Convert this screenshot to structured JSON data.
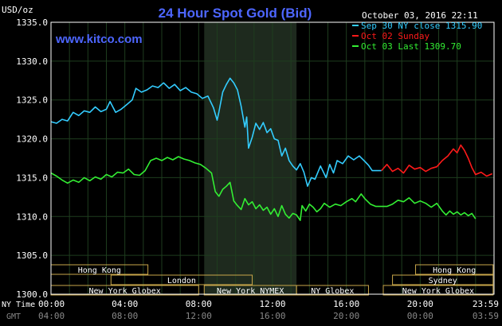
{
  "header": {
    "unit": "USD/oz",
    "title": "24 Hour Spot Gold (Bid)",
    "timestamp": "October 03, 2016 22:11",
    "website": "www.kitco.com"
  },
  "legend": [
    {
      "label": "Sep 30 NY close 1315.90",
      "color": "#33ccff"
    },
    {
      "label": "Oct 02 Sunday",
      "color": "#ff1a1a"
    },
    {
      "label": "Oct 03 Last 1309.70",
      "color": "#33ee33"
    }
  ],
  "axis": {
    "row_label_top": "NY Time",
    "row_label_bottom": "GMT",
    "x_ticks_ny": [
      "00:00",
      "04:00",
      "08:00",
      "12:00",
      "16:00",
      "20:00",
      "23:59"
    ],
    "x_ticks_gmt": [
      "04:00",
      "08:00",
      "12:00",
      "16:00",
      "20:00",
      "00:00",
      "03:59"
    ]
  },
  "sessions": [
    {
      "label": "Hong Kong",
      "start": 0.0,
      "end": 5.25,
      "row": 0
    },
    {
      "label": "Hong Kong",
      "start": 19.75,
      "end": 23.95,
      "row": 0
    },
    {
      "label": "London",
      "start": 3.25,
      "end": 10.9,
      "row": 1
    },
    {
      "label": "Sydney",
      "start": 18.5,
      "end": 23.95,
      "row": 1
    },
    {
      "label": "New York Globex",
      "start": 0.0,
      "end": 8.0,
      "row": 2
    },
    {
      "label": "New York NYMEX",
      "start": 8.3,
      "end": 13.3,
      "row": 2
    },
    {
      "label": "NY Globex",
      "start": 13.3,
      "end": 17.2,
      "row": 2
    },
    {
      "label": "New York Globex",
      "start": 18.0,
      "end": 23.95,
      "row": 2
    }
  ],
  "colors": {
    "background": "#000000",
    "grid": "#1e3d1e",
    "frame": "#ffffff",
    "title": "#4d66ff",
    "nymex_shade": "#1e2a1e",
    "session_box": "#c8a64a"
  },
  "chart_data": {
    "type": "line",
    "ylim": [
      1300,
      1335
    ],
    "y_ticks": [
      1300.0,
      1305.0,
      1310.0,
      1315.0,
      1320.0,
      1325.0,
      1330.0,
      1335.0
    ],
    "xlim": [
      0,
      24
    ],
    "shaded_range": [
      8.3,
      13.3
    ],
    "series": [
      {
        "name": "Sep 30 NY close 1315.90",
        "color": "#33ccff",
        "points": [
          [
            0,
            1322.2
          ],
          [
            0.3,
            1322.0
          ],
          [
            0.6,
            1322.5
          ],
          [
            0.9,
            1322.3
          ],
          [
            1.2,
            1323.4
          ],
          [
            1.5,
            1323.0
          ],
          [
            1.8,
            1323.6
          ],
          [
            2.1,
            1323.4
          ],
          [
            2.4,
            1324.1
          ],
          [
            2.7,
            1323.5
          ],
          [
            3.0,
            1323.8
          ],
          [
            3.2,
            1324.8
          ],
          [
            3.5,
            1323.4
          ],
          [
            3.8,
            1323.8
          ],
          [
            4.1,
            1324.4
          ],
          [
            4.4,
            1325.0
          ],
          [
            4.6,
            1326.5
          ],
          [
            4.9,
            1326.0
          ],
          [
            5.2,
            1326.3
          ],
          [
            5.5,
            1326.8
          ],
          [
            5.8,
            1326.6
          ],
          [
            6.1,
            1327.2
          ],
          [
            6.4,
            1326.5
          ],
          [
            6.7,
            1327.0
          ],
          [
            7.0,
            1326.2
          ],
          [
            7.3,
            1326.6
          ],
          [
            7.6,
            1326.0
          ],
          [
            7.9,
            1325.8
          ],
          [
            8.2,
            1325.2
          ],
          [
            8.5,
            1325.5
          ],
          [
            8.8,
            1324.0
          ],
          [
            9.0,
            1322.4
          ],
          [
            9.1,
            1323.5
          ],
          [
            9.3,
            1326.0
          ],
          [
            9.5,
            1327.0
          ],
          [
            9.7,
            1327.8
          ],
          [
            9.9,
            1327.2
          ],
          [
            10.1,
            1326.3
          ],
          [
            10.3,
            1324.2
          ],
          [
            10.5,
            1321.5
          ],
          [
            10.6,
            1322.8
          ],
          [
            10.7,
            1318.8
          ],
          [
            10.9,
            1320.2
          ],
          [
            11.1,
            1322.0
          ],
          [
            11.3,
            1321.2
          ],
          [
            11.5,
            1322.1
          ],
          [
            11.7,
            1320.8
          ],
          [
            11.9,
            1321.3
          ],
          [
            12.1,
            1320.0
          ],
          [
            12.3,
            1319.8
          ],
          [
            12.5,
            1317.8
          ],
          [
            12.7,
            1318.8
          ],
          [
            12.9,
            1317.2
          ],
          [
            13.1,
            1316.5
          ],
          [
            13.3,
            1316.0
          ],
          [
            13.5,
            1316.8
          ],
          [
            13.7,
            1315.7
          ],
          [
            13.9,
            1313.9
          ],
          [
            14.1,
            1315.0
          ],
          [
            14.3,
            1314.8
          ],
          [
            14.6,
            1316.5
          ],
          [
            14.9,
            1315.0
          ],
          [
            15.1,
            1316.7
          ],
          [
            15.3,
            1315.6
          ],
          [
            15.5,
            1317.2
          ],
          [
            15.8,
            1316.8
          ],
          [
            16.1,
            1317.8
          ],
          [
            16.4,
            1317.3
          ],
          [
            16.7,
            1317.8
          ],
          [
            17.0,
            1317.1
          ],
          [
            17.2,
            1316.6
          ],
          [
            17.4,
            1315.9
          ],
          [
            17.9,
            1315.9
          ]
        ]
      },
      {
        "name": "Oct 02 Sunday",
        "color": "#ff1a1a",
        "points": [
          [
            17.9,
            1315.9
          ],
          [
            18.2,
            1316.7
          ],
          [
            18.5,
            1315.8
          ],
          [
            18.8,
            1316.2
          ],
          [
            19.1,
            1315.6
          ],
          [
            19.4,
            1316.6
          ],
          [
            19.7,
            1316.1
          ],
          [
            20.0,
            1316.3
          ],
          [
            20.3,
            1315.8
          ],
          [
            20.6,
            1316.2
          ],
          [
            20.9,
            1316.4
          ],
          [
            21.2,
            1317.2
          ],
          [
            21.5,
            1317.8
          ],
          [
            21.8,
            1318.7
          ],
          [
            22.0,
            1318.2
          ],
          [
            22.2,
            1319.2
          ],
          [
            22.4,
            1318.5
          ],
          [
            22.6,
            1317.5
          ],
          [
            22.8,
            1316.3
          ],
          [
            23.0,
            1315.4
          ],
          [
            23.3,
            1315.7
          ],
          [
            23.6,
            1315.2
          ],
          [
            23.9,
            1315.5
          ]
        ]
      },
      {
        "name": "Oct 03 Last 1309.70",
        "color": "#33ee33",
        "points": [
          [
            0,
            1315.6
          ],
          [
            0.3,
            1315.2
          ],
          [
            0.6,
            1314.7
          ],
          [
            0.9,
            1314.3
          ],
          [
            1.2,
            1314.7
          ],
          [
            1.5,
            1314.4
          ],
          [
            1.8,
            1315.0
          ],
          [
            2.1,
            1314.6
          ],
          [
            2.4,
            1315.1
          ],
          [
            2.7,
            1314.8
          ],
          [
            3.0,
            1315.4
          ],
          [
            3.3,
            1315.1
          ],
          [
            3.6,
            1315.7
          ],
          [
            3.9,
            1315.6
          ],
          [
            4.2,
            1316.1
          ],
          [
            4.5,
            1315.4
          ],
          [
            4.8,
            1315.3
          ],
          [
            5.1,
            1315.9
          ],
          [
            5.4,
            1317.2
          ],
          [
            5.7,
            1317.5
          ],
          [
            6.0,
            1317.2
          ],
          [
            6.3,
            1317.6
          ],
          [
            6.6,
            1317.3
          ],
          [
            6.9,
            1317.7
          ],
          [
            7.2,
            1317.4
          ],
          [
            7.5,
            1317.2
          ],
          [
            7.8,
            1316.9
          ],
          [
            8.1,
            1316.7
          ],
          [
            8.4,
            1316.2
          ],
          [
            8.7,
            1315.6
          ],
          [
            8.9,
            1313.2
          ],
          [
            9.1,
            1312.6
          ],
          [
            9.3,
            1313.5
          ],
          [
            9.5,
            1313.9
          ],
          [
            9.7,
            1314.4
          ],
          [
            9.9,
            1312.0
          ],
          [
            10.1,
            1311.4
          ],
          [
            10.3,
            1310.9
          ],
          [
            10.5,
            1312.3
          ],
          [
            10.7,
            1311.5
          ],
          [
            10.9,
            1311.9
          ],
          [
            11.1,
            1311.0
          ],
          [
            11.3,
            1311.5
          ],
          [
            11.5,
            1310.8
          ],
          [
            11.7,
            1311.2
          ],
          [
            11.9,
            1310.3
          ],
          [
            12.1,
            1311.0
          ],
          [
            12.3,
            1310.0
          ],
          [
            12.5,
            1311.4
          ],
          [
            12.7,
            1310.3
          ],
          [
            12.9,
            1309.8
          ],
          [
            13.1,
            1310.4
          ],
          [
            13.3,
            1310.2
          ],
          [
            13.5,
            1309.5
          ],
          [
            13.6,
            1311.4
          ],
          [
            13.8,
            1310.7
          ],
          [
            14.0,
            1311.6
          ],
          [
            14.2,
            1311.2
          ],
          [
            14.4,
            1310.6
          ],
          [
            14.6,
            1311.0
          ],
          [
            14.8,
            1311.7
          ],
          [
            15.1,
            1311.2
          ],
          [
            15.4,
            1311.6
          ],
          [
            15.7,
            1311.4
          ],
          [
            16.0,
            1311.9
          ],
          [
            16.3,
            1312.3
          ],
          [
            16.5,
            1311.9
          ],
          [
            16.8,
            1312.9
          ],
          [
            17.0,
            1312.3
          ],
          [
            17.3,
            1311.6
          ],
          [
            17.6,
            1311.3
          ],
          [
            17.9,
            1311.3
          ],
          [
            18.2,
            1311.3
          ],
          [
            18.5,
            1311.6
          ],
          [
            18.8,
            1312.1
          ],
          [
            19.1,
            1311.9
          ],
          [
            19.4,
            1312.4
          ],
          [
            19.7,
            1311.7
          ],
          [
            20.0,
            1312.0
          ],
          [
            20.3,
            1311.7
          ],
          [
            20.6,
            1311.2
          ],
          [
            20.9,
            1311.7
          ],
          [
            21.2,
            1310.7
          ],
          [
            21.4,
            1310.2
          ],
          [
            21.6,
            1310.7
          ],
          [
            21.8,
            1310.3
          ],
          [
            22.0,
            1310.6
          ],
          [
            22.2,
            1310.2
          ],
          [
            22.4,
            1310.5
          ],
          [
            22.6,
            1310.1
          ],
          [
            22.8,
            1310.4
          ],
          [
            23.0,
            1309.7
          ]
        ]
      }
    ]
  }
}
